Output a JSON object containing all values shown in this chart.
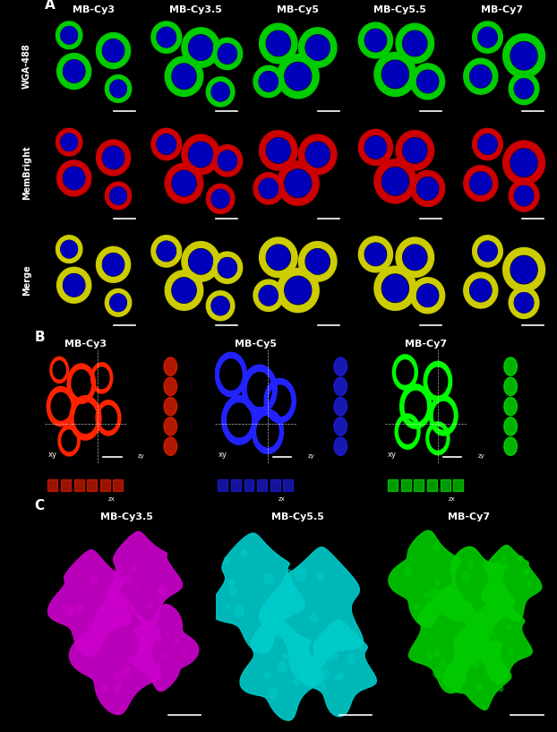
{
  "fig_width": 6.22,
  "fig_height": 8.17,
  "dpi": 100,
  "bg_color": "#000000",
  "panel_A": {
    "label": "A",
    "col_labels": [
      "MB-Cy3",
      "MB-Cy3.5",
      "MB-Cy5",
      "MB-Cy5.5",
      "MB-Cy7"
    ],
    "row_labels": [
      "WGA-488",
      "MemBright",
      "Merge"
    ],
    "row_label_rotation": 90,
    "n_cols": 5,
    "n_rows": 3,
    "cell_colors": {
      "WGA-488": "#00aa00",
      "MemBright_row1": "#ff0000",
      "Merge": "#ffff00"
    },
    "nucleus_color": "#0000cc",
    "bg_color": "#000000"
  },
  "panel_B": {
    "label": "B",
    "col_labels": [
      "MB-Cy3",
      "MB-Cy5",
      "MB-Cy7"
    ],
    "cell_colors": [
      "#ff2200",
      "#2222ff",
      "#00ff00"
    ],
    "bg_color": "#000000",
    "sub_labels": [
      "xy",
      "zy",
      "zx"
    ]
  },
  "panel_C": {
    "label": "C",
    "col_labels": [
      "MB-Cy3.5",
      "MB-Cy5.5",
      "MB-Cy7"
    ],
    "cell_colors": [
      "#cc00cc",
      "#00cccc",
      "#00cc00"
    ],
    "bg_color": "#000000"
  },
  "label_color": "#ffffff",
  "label_fontsize": 9,
  "panel_label_fontsize": 11,
  "panel_label_color": "#ffffff",
  "col_label_fontsize": 8,
  "col_label_color": "#ffffff",
  "row_label_fontsize": 7,
  "row_label_color": "#ffffff"
}
